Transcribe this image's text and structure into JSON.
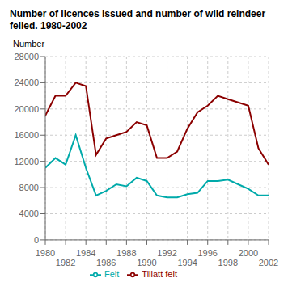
{
  "chart_data": {
    "type": "line",
    "title": "Number of licences issued and number of wild reindeer\nfelled. 1980-2002",
    "y_label": "Number",
    "x": [
      1980,
      1981,
      1982,
      1983,
      1984,
      1985,
      1986,
      1987,
      1988,
      1989,
      1990,
      1991,
      1992,
      1993,
      1994,
      1995,
      1996,
      1997,
      1998,
      1999,
      2000,
      2001,
      2002
    ],
    "series": [
      {
        "name": "Tillatt felt",
        "color": "#8B0000",
        "values": [
          19000,
          22000,
          22000,
          24000,
          23500,
          13000,
          15500,
          16000,
          16500,
          18000,
          17500,
          12500,
          12500,
          13500,
          17000,
          19500,
          20500,
          22000,
          21500,
          21000,
          20500,
          14000,
          11500
        ]
      },
      {
        "name": "Felt",
        "color": "#00AAAA",
        "values": [
          11000,
          12500,
          11500,
          16000,
          11000,
          6800,
          7500,
          8500,
          8200,
          9500,
          9000,
          6800,
          6500,
          6500,
          7000,
          7200,
          9000,
          9000,
          9200,
          8500,
          7800,
          6800,
          6800
        ]
      }
    ],
    "xlim": [
      1980,
      2002
    ],
    "xticks": [
      1980,
      1982,
      1984,
      1986,
      1988,
      1990,
      1992,
      1994,
      1996,
      1998,
      2000,
      2002
    ],
    "ylim": [
      0,
      28000
    ],
    "yticks": [
      0,
      4000,
      8000,
      12000,
      16000,
      20000,
      24000,
      28000
    ],
    "grid": true,
    "legend": "bottom"
  }
}
